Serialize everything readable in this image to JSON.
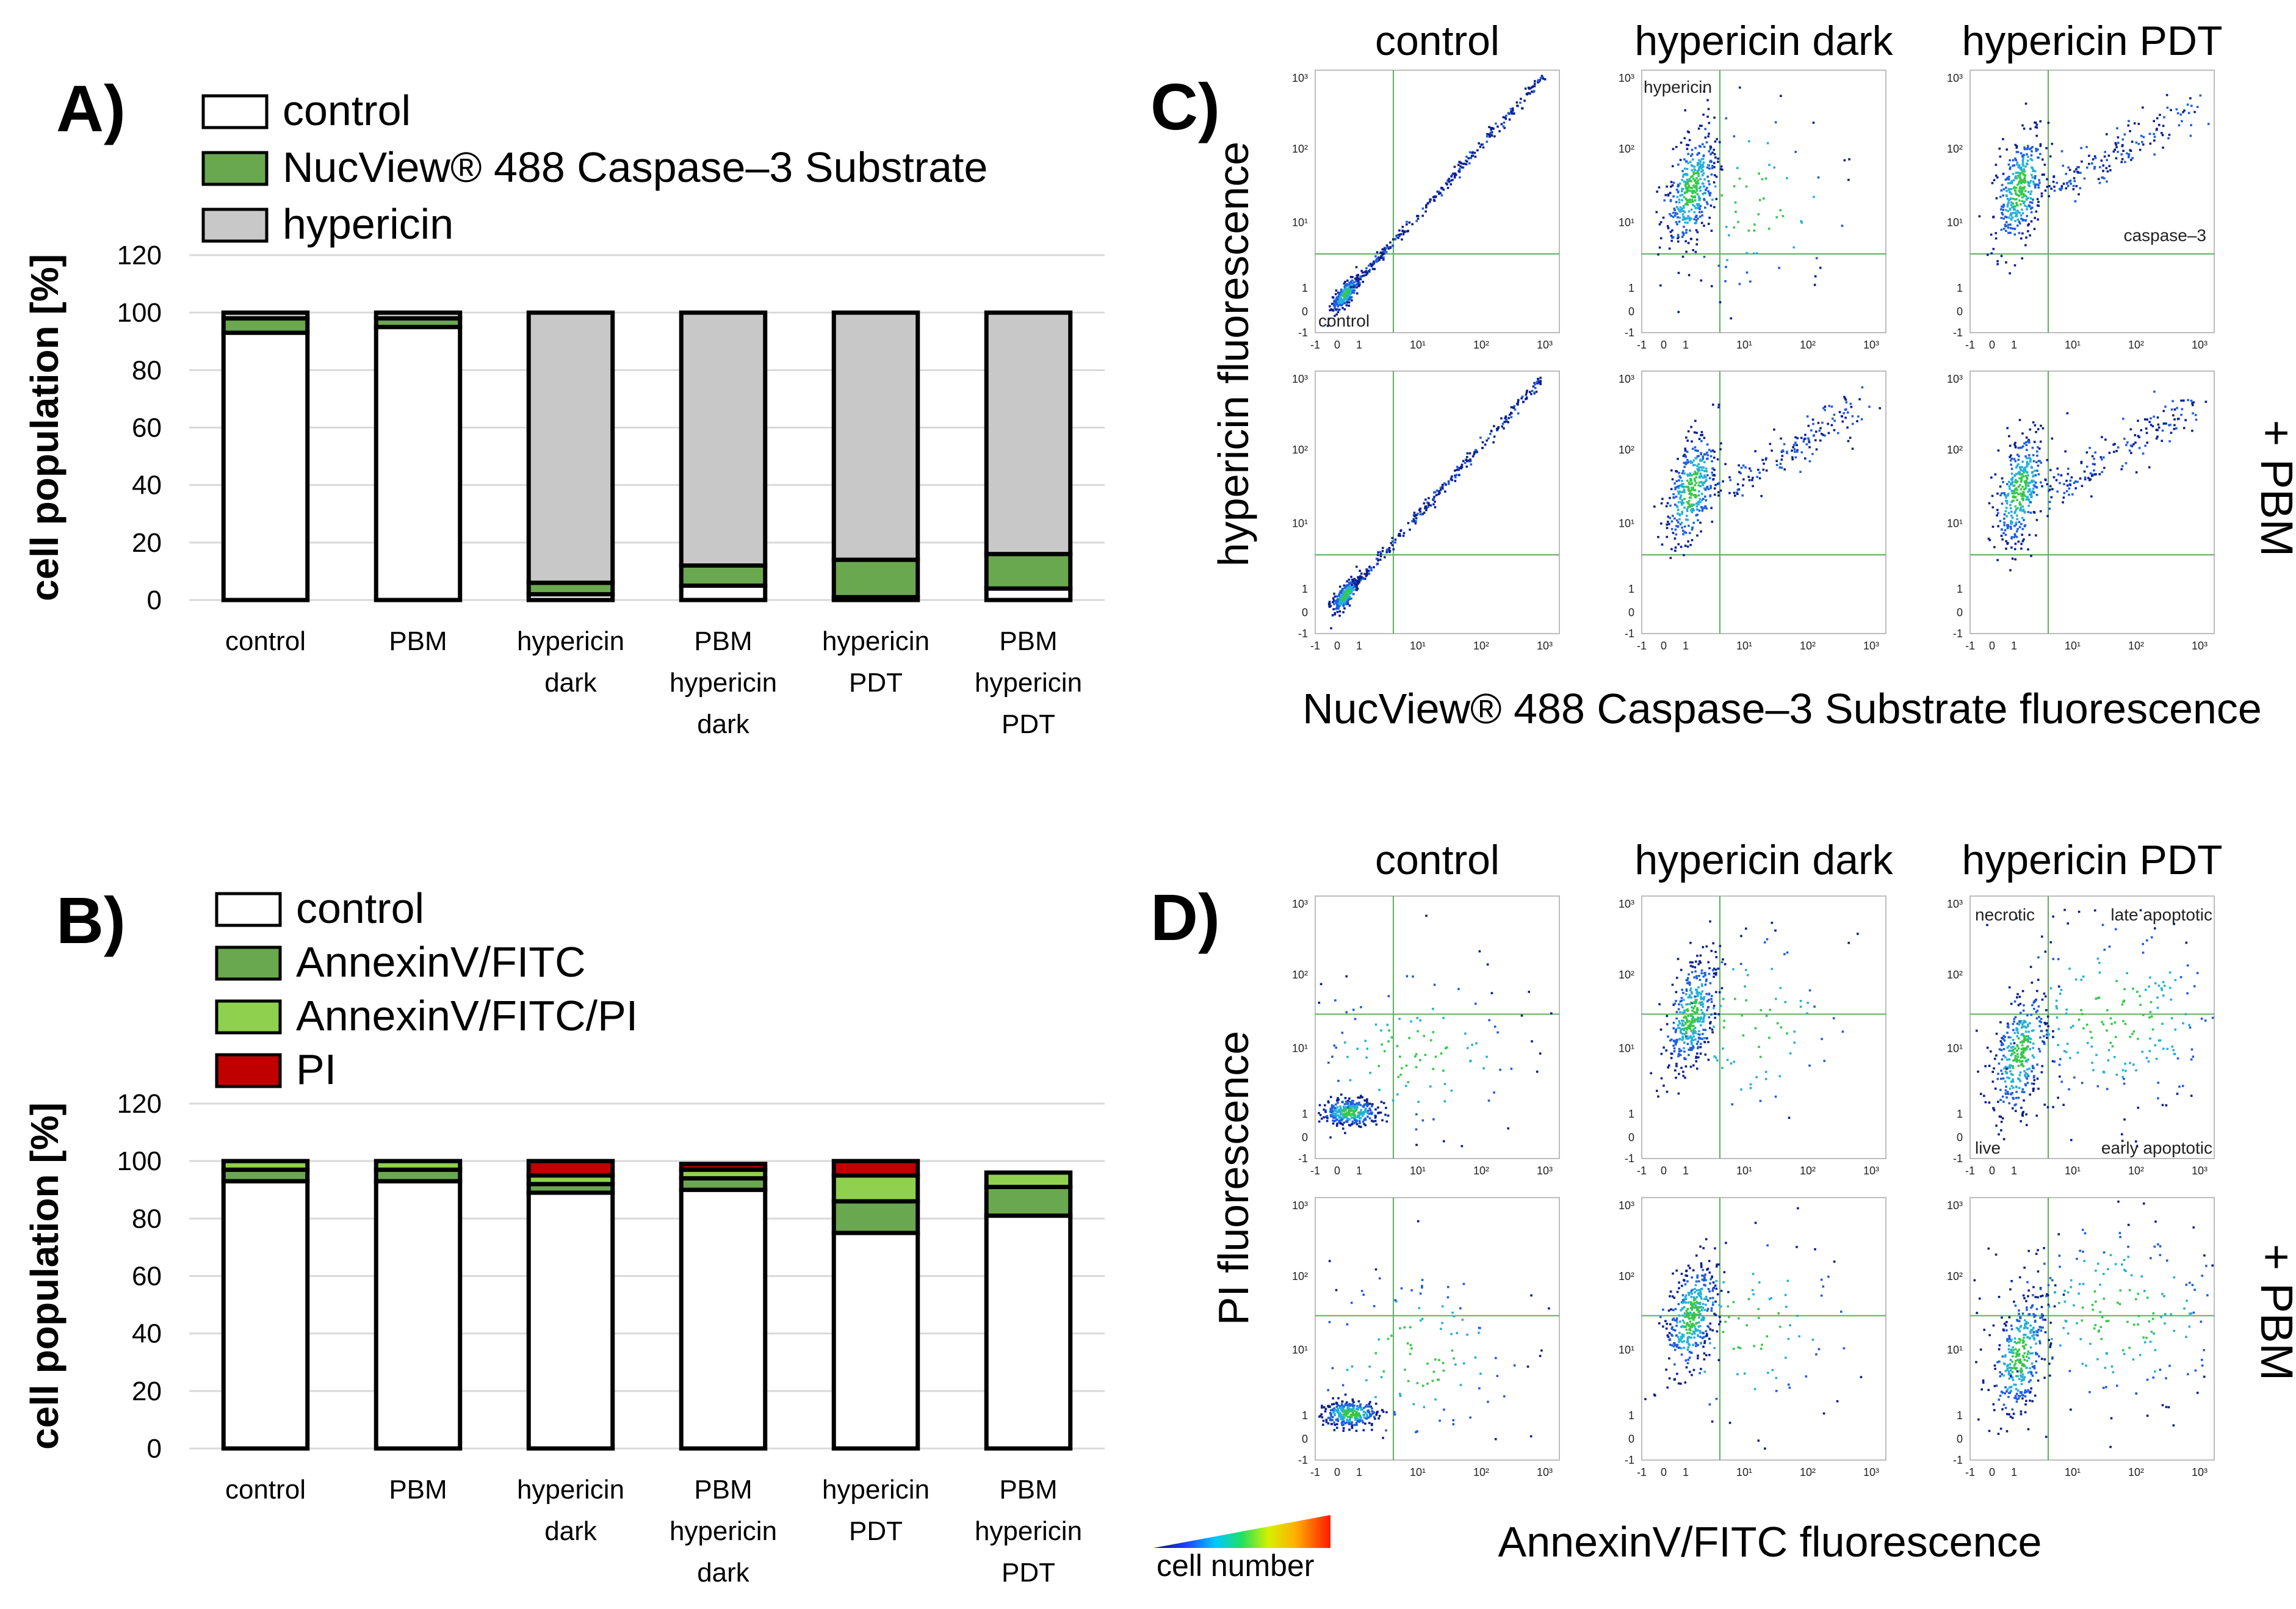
{
  "figure": {
    "panels": {
      "A": "A)",
      "B": "B)",
      "C": "C)",
      "D": "D)"
    },
    "colorbar_label": "cell number",
    "row_label_pbm": "+ PBM"
  },
  "colors": {
    "white_fill": "#ffffff",
    "green_dark": "#6aa84f",
    "green_light": "#8fd14f",
    "gray": "#c8c8c8",
    "red": "#c00000",
    "outline": "#000000",
    "gate_line": "#5fae5f"
  },
  "chart_data": [
    {
      "id": "A",
      "type": "bar",
      "stacked": true,
      "ylabel": "cell population [%]",
      "ylim": [
        0,
        120
      ],
      "yticks": [
        0,
        20,
        40,
        60,
        80,
        100,
        120
      ],
      "grid": true,
      "categories": [
        "control",
        "PBM",
        "hypericin dark",
        "PBM hypericin dark",
        "hypericin PDT",
        "PBM hypericin PDT"
      ],
      "category_lines": [
        [
          "control"
        ],
        [
          "PBM"
        ],
        [
          "hypericin",
          "dark"
        ],
        [
          "PBM",
          "hypericin",
          "dark"
        ],
        [
          "hypericin",
          "PDT"
        ],
        [
          "PBM",
          "hypericin",
          "PDT"
        ]
      ],
      "series": [
        {
          "name": "control",
          "color": "#ffffff",
          "values": [
            93,
            95,
            2,
            5,
            1,
            4
          ]
        },
        {
          "name": "NucView® 488 Caspase–3 Substrate",
          "color": "#6aa84f",
          "values": [
            5,
            3,
            4,
            7,
            13,
            12
          ]
        },
        {
          "name": "hypericin",
          "color": "#c8c8c8",
          "values": [
            2,
            2,
            94,
            88,
            86,
            84
          ]
        }
      ]
    },
    {
      "id": "B",
      "type": "bar",
      "stacked": true,
      "ylabel": "cell population [%]",
      "ylim": [
        0,
        120
      ],
      "yticks": [
        0,
        20,
        40,
        60,
        80,
        100,
        120
      ],
      "grid": true,
      "categories": [
        "control",
        "PBM",
        "hypericin dark",
        "PBM hypericin dark",
        "hypericin PDT",
        "PBM hypericin PDT"
      ],
      "category_lines": [
        [
          "control"
        ],
        [
          "PBM"
        ],
        [
          "hypericin",
          "dark"
        ],
        [
          "PBM",
          "hypericin",
          "dark"
        ],
        [
          "hypericin",
          "PDT"
        ],
        [
          "PBM",
          "hypericin",
          "PDT"
        ]
      ],
      "series": [
        {
          "name": "control",
          "color": "#ffffff",
          "values": [
            93,
            93,
            89,
            90,
            75,
            81
          ]
        },
        {
          "name": "AnnexinV/FITC",
          "color": "#6aa84f",
          "values": [
            4,
            4,
            3,
            4,
            11,
            10
          ]
        },
        {
          "name": "AnnexinV/FITC/PI",
          "color": "#8fd14f",
          "values": [
            3,
            3,
            3,
            3,
            9,
            5
          ]
        },
        {
          "name": "PI",
          "color": "#c00000",
          "values": [
            0,
            0,
            5,
            2,
            5,
            0
          ]
        }
      ]
    },
    {
      "id": "C",
      "type": "scatter",
      "subtype": "flow-cytometry density",
      "columns": [
        "control",
        "hypericin dark",
        "hypericin PDT"
      ],
      "rows": [
        "",
        "+ PBM"
      ],
      "xlabel": "NucView® 488 Caspase–3 Substrate fluorescence",
      "ylabel": "hypericin fluorescence",
      "xticks": [
        "-1",
        "0",
        "1",
        "10¹",
        "10²",
        "10³"
      ],
      "yticks": [
        "-1",
        "0",
        "1",
        "10¹",
        "10²",
        "10³"
      ],
      "quadrant_labels": {
        "control_top": "control",
        "dark_top": "hypericin",
        "pdt_top": "caspase–3"
      }
    },
    {
      "id": "D",
      "type": "scatter",
      "subtype": "flow-cytometry density",
      "columns": [
        "control",
        "hypericin dark",
        "hypericin PDT"
      ],
      "rows": [
        "",
        "+ PBM"
      ],
      "xlabel": "AnnexinV/FITC fluorescence",
      "ylabel": "PI fluorescence",
      "xticks": [
        "-1",
        "0",
        "1",
        "10¹",
        "10²",
        "10³"
      ],
      "yticks": [
        "-1",
        "0",
        "1",
        "10¹",
        "10²",
        "10³"
      ],
      "quadrant_labels": {
        "necrotic": "necrotic",
        "late": "late apoptotic",
        "live": "live",
        "early": "early apoptotic"
      }
    }
  ]
}
